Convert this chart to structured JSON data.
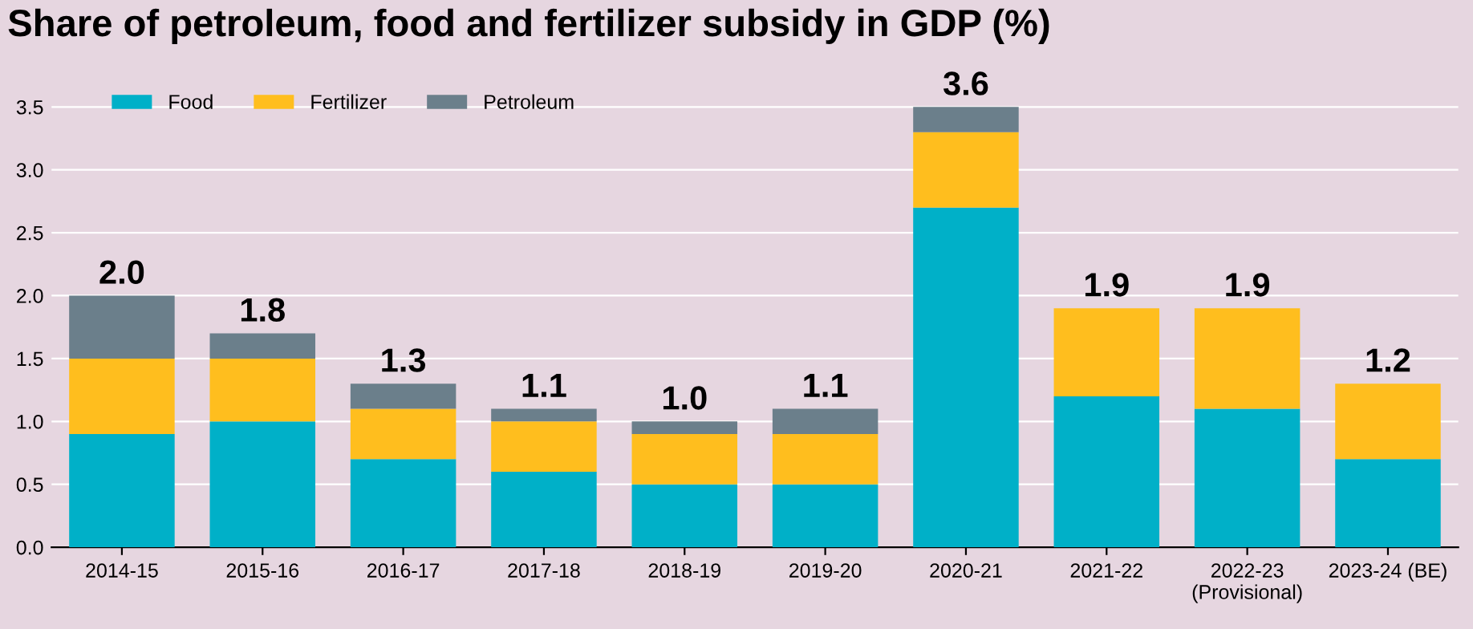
{
  "chart_data": {
    "type": "bar",
    "stacked": true,
    "title": "Share of petroleum, food and fertilizer subsidy in GDP (%)",
    "categories": [
      "2014-15",
      "2015-16",
      "2016-17",
      "2017-18",
      "2018-19",
      "2019-20",
      "2020-21",
      "2021-22",
      "2022-23\n(Provisional)",
      "2023-24 (BE)"
    ],
    "series": [
      {
        "name": "Food",
        "color": "#00b0c8",
        "values": [
          0.9,
          1.0,
          0.7,
          0.6,
          0.5,
          0.5,
          2.7,
          1.2,
          1.1,
          0.7
        ]
      },
      {
        "name": "Fertilizer",
        "color": "#ffbe1e",
        "values": [
          0.6,
          0.5,
          0.4,
          0.4,
          0.4,
          0.4,
          0.6,
          0.7,
          0.8,
          0.6
        ]
      },
      {
        "name": "Petroleum",
        "color": "#6b7f8b",
        "values": [
          0.5,
          0.2,
          0.2,
          0.1,
          0.1,
          0.2,
          0.2,
          null,
          null,
          null
        ]
      }
    ],
    "totals": [
      "2.0",
      "1.8",
      "1.3",
      "1.1",
      "1.0",
      "1.1",
      "3.6",
      "1.9",
      "1.9",
      "1.2"
    ],
    "ylim": [
      0,
      3.6
    ],
    "yticks": [
      {
        "value": 0,
        "label": "0.0"
      },
      {
        "value": 0.5,
        "label": "0.5"
      },
      {
        "value": 1,
        "label": "1.0"
      },
      {
        "value": 1.5,
        "label": "1.5"
      },
      {
        "value": 2,
        "label": "2.0"
      },
      {
        "value": 2.5,
        "label": "2.5"
      },
      {
        "value": 3,
        "label": "3.0"
      },
      {
        "value": 3.5,
        "label": "3.5"
      }
    ],
    "grid": "y",
    "legend": "top left"
  }
}
